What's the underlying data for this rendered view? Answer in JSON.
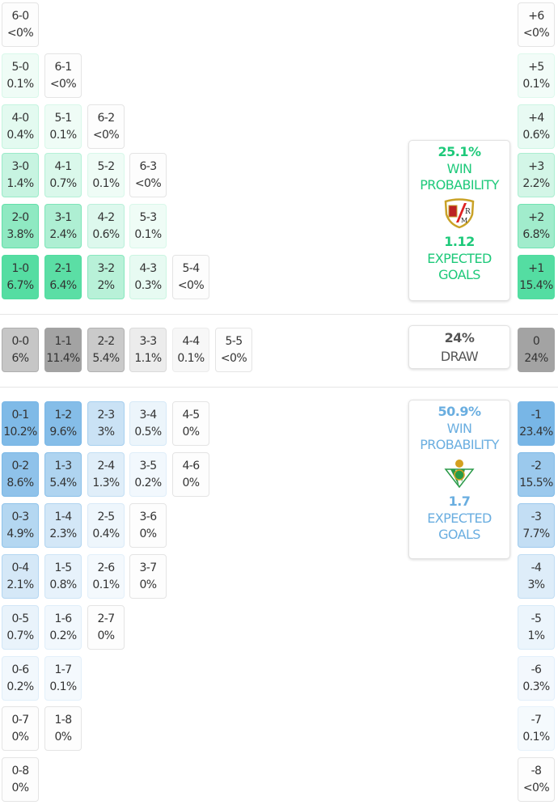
{
  "colors": {
    "home": "#4fdc9f",
    "draw": "#a3a3a3",
    "away": "#78b6e6",
    "home_text": "#1ec97a",
    "away_text": "#6aaee0",
    "draw_text": "#555555"
  },
  "home_rows": [
    [
      {
        "s": "6-0",
        "p": "<0%"
      }
    ],
    [
      {
        "s": "5-0",
        "p": "0.1%"
      },
      {
        "s": "6-1",
        "p": "<0%"
      }
    ],
    [
      {
        "s": "4-0",
        "p": "0.4%"
      },
      {
        "s": "5-1",
        "p": "0.1%"
      },
      {
        "s": "6-2",
        "p": "<0%"
      }
    ],
    [
      {
        "s": "3-0",
        "p": "1.4%"
      },
      {
        "s": "4-1",
        "p": "0.7%"
      },
      {
        "s": "5-2",
        "p": "0.1%"
      },
      {
        "s": "6-3",
        "p": "<0%"
      }
    ],
    [
      {
        "s": "2-0",
        "p": "3.8%"
      },
      {
        "s": "3-1",
        "p": "2.4%"
      },
      {
        "s": "4-2",
        "p": "0.6%"
      },
      {
        "s": "5-3",
        "p": "0.1%"
      }
    ],
    [
      {
        "s": "1-0",
        "p": "6.7%"
      },
      {
        "s": "2-1",
        "p": "6.4%"
      },
      {
        "s": "3-2",
        "p": "2%"
      },
      {
        "s": "4-3",
        "p": "0.3%"
      },
      {
        "s": "5-4",
        "p": "<0%"
      }
    ]
  ],
  "home_margins": [
    {
      "s": "+6",
      "p": "<0%"
    },
    {
      "s": "+5",
      "p": "0.1%"
    },
    {
      "s": "+4",
      "p": "0.6%"
    },
    {
      "s": "+3",
      "p": "2.2%"
    },
    {
      "s": "+2",
      "p": "6.8%"
    },
    {
      "s": "+1",
      "p": "15.4%"
    }
  ],
  "draw_row": [
    {
      "s": "0-0",
      "p": "6%"
    },
    {
      "s": "1-1",
      "p": "11.4%"
    },
    {
      "s": "2-2",
      "p": "5.4%"
    },
    {
      "s": "3-3",
      "p": "1.1%"
    },
    {
      "s": "4-4",
      "p": "0.1%"
    },
    {
      "s": "5-5",
      "p": "<0%"
    }
  ],
  "draw_margin": {
    "s": "0",
    "p": "24%"
  },
  "away_rows": [
    [
      {
        "s": "0-1",
        "p": "10.2%"
      },
      {
        "s": "1-2",
        "p": "9.6%"
      },
      {
        "s": "2-3",
        "p": "3%"
      },
      {
        "s": "3-4",
        "p": "0.5%"
      },
      {
        "s": "4-5",
        "p": "0%"
      }
    ],
    [
      {
        "s": "0-2",
        "p": "8.6%"
      },
      {
        "s": "1-3",
        "p": "5.4%"
      },
      {
        "s": "2-4",
        "p": "1.3%"
      },
      {
        "s": "3-5",
        "p": "0.2%"
      },
      {
        "s": "4-6",
        "p": "0%"
      }
    ],
    [
      {
        "s": "0-3",
        "p": "4.9%"
      },
      {
        "s": "1-4",
        "p": "2.3%"
      },
      {
        "s": "2-5",
        "p": "0.4%"
      },
      {
        "s": "3-6",
        "p": "0%"
      }
    ],
    [
      {
        "s": "0-4",
        "p": "2.1%"
      },
      {
        "s": "1-5",
        "p": "0.8%"
      },
      {
        "s": "2-6",
        "p": "0.1%"
      },
      {
        "s": "3-7",
        "p": "0%"
      }
    ],
    [
      {
        "s": "0-5",
        "p": "0.7%"
      },
      {
        "s": "1-6",
        "p": "0.2%"
      },
      {
        "s": "2-7",
        "p": "0%"
      }
    ],
    [
      {
        "s": "0-6",
        "p": "0.2%"
      },
      {
        "s": "1-7",
        "p": "0.1%"
      }
    ],
    [
      {
        "s": "0-7",
        "p": "0%"
      },
      {
        "s": "1-8",
        "p": "0%"
      }
    ],
    [
      {
        "s": "0-8",
        "p": "0%"
      }
    ]
  ],
  "away_margins": [
    {
      "s": "-1",
      "p": "23.4%"
    },
    {
      "s": "-2",
      "p": "15.5%"
    },
    {
      "s": "-3",
      "p": "7.7%"
    },
    {
      "s": "-4",
      "p": "3%"
    },
    {
      "s": "-5",
      "p": "1%"
    },
    {
      "s": "-6",
      "p": "0.3%"
    },
    {
      "s": "-7",
      "p": "0.1%"
    },
    {
      "s": "-8",
      "p": "<0%"
    }
  ],
  "home_card": {
    "win_pct": "25.1%",
    "win_label": "WIN PROBABILITY",
    "xg": "1.12",
    "xg_label": "EXPECTED GOALS",
    "logo": "rayo-vallecano-crest"
  },
  "draw_card": {
    "pct": "24%",
    "label": "DRAW"
  },
  "away_card": {
    "win_pct": "50.9%",
    "win_label": "WIN PROBABILITY",
    "xg": "1.7",
    "xg_label": "EXPECTED GOALS",
    "logo": "real-betis-crest"
  }
}
